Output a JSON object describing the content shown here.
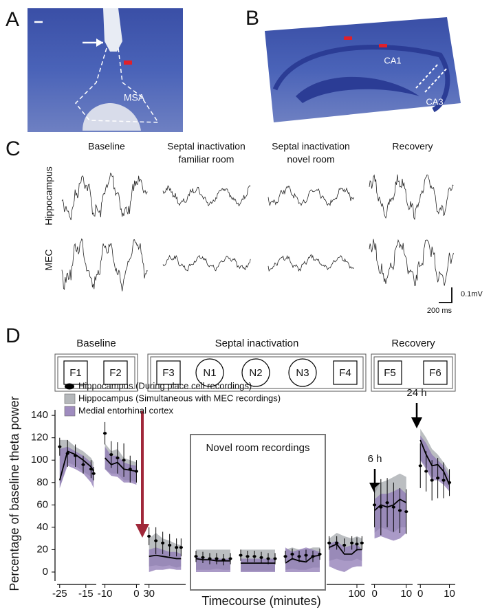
{
  "panel_labels": [
    "A",
    "B",
    "C",
    "D"
  ],
  "panel_a": {
    "labels": [
      "MSA"
    ]
  },
  "panel_b": {
    "labels": [
      "CA1",
      "CA3"
    ]
  },
  "panel_c": {
    "columns": [
      [
        "Baseline"
      ],
      [
        "Septal inactivation",
        "familiar room"
      ],
      [
        "Septal inactivation",
        "novel room"
      ],
      [
        "Recovery"
      ]
    ],
    "rows": [
      "Hippocampus",
      "MEC"
    ],
    "scale": {
      "voltage": "0.1mV",
      "time": "200 ms"
    }
  },
  "schematic": {
    "groups": [
      {
        "title": "Baseline",
        "items": [
          {
            "label": "F1",
            "shape": "square"
          },
          {
            "label": "F2",
            "shape": "square"
          }
        ]
      },
      {
        "title": "Septal inactivation",
        "items": [
          {
            "label": "F3",
            "shape": "square"
          },
          {
            "label": "N1",
            "shape": "circle"
          },
          {
            "label": "N2",
            "shape": "circle"
          },
          {
            "label": "N3",
            "shape": "circle"
          },
          {
            "label": "F4",
            "shape": "square"
          }
        ]
      },
      {
        "title": "Recovery",
        "items": [
          {
            "label": "F5",
            "shape": "square"
          },
          {
            "label": "F6",
            "shape": "square"
          }
        ]
      }
    ]
  },
  "chart_data": {
    "type": "line",
    "ylabel": "Percentage of baseline theta power",
    "xlabel": "Timecourse (minutes)",
    "ylim": [
      -8,
      145
    ],
    "yticks": [
      0,
      20,
      40,
      60,
      80,
      100,
      120,
      140
    ],
    "series": [
      {
        "name": "Hippocampus (During place cell recordings)",
        "color": "#000000"
      },
      {
        "name": "Hippocampus (Simultaneous with MEC recordings)",
        "color": "#b4b7ba"
      },
      {
        "name": "Medial entorhinal cortex",
        "color": "#8e78b4"
      }
    ],
    "annotations": [
      "6 h",
      "24 h",
      "Novel room recordings"
    ],
    "segments": [
      {
        "xlim": [
          -26,
          -11
        ],
        "xticks": [
          -25,
          -15
        ],
        "x": [
          -25,
          -22,
          -19,
          -16,
          -13,
          -12
        ],
        "dots": {
          "values": [
            112,
            106,
            104,
            96,
            92,
            88
          ],
          "err": [
            8,
            12,
            10,
            8,
            8,
            6
          ]
        },
        "hippo": {
          "values": [
            82,
            108,
            105,
            100,
            94,
            90
          ],
          "low": [
            75,
            98,
            95,
            90,
            85,
            80
          ],
          "high": [
            118,
            118,
            112,
            108,
            102,
            98
          ]
        },
        "mec": {
          "low": [
            75,
            95,
            92,
            88,
            80,
            75
          ],
          "high": [
            110,
            112,
            108,
            104,
            98,
            92
          ]
        }
      },
      {
        "xlim": [
          -11,
          1
        ],
        "xticks": [
          -10,
          0
        ],
        "x": [
          -10,
          -8,
          -6,
          -4,
          -2,
          0
        ],
        "dots": {
          "values": [
            124,
            105,
            102,
            100,
            92,
            90
          ],
          "err": [
            10,
            12,
            14,
            15,
            12,
            10
          ]
        },
        "hippo": {
          "values": [
            102,
            96,
            98,
            92,
            91,
            90
          ],
          "low": [
            92,
            88,
            88,
            82,
            82,
            80
          ],
          "high": [
            115,
            108,
            110,
            102,
            100,
            98
          ]
        },
        "mec": {
          "low": [
            92,
            86,
            85,
            80,
            80,
            78
          ],
          "high": [
            112,
            104,
            104,
            98,
            96,
            95
          ]
        }
      },
      {
        "xlim": [
          28,
          46
        ],
        "xticks": [
          30
        ],
        "x": [
          30,
          33,
          36,
          39,
          42,
          44
        ],
        "dots": {
          "values": [
            32,
            28,
            26,
            24,
            22,
            22
          ],
          "err": [
            8,
            12,
            10,
            10,
            8,
            8
          ]
        },
        "hippo": {
          "values": [
            14,
            15,
            14,
            13,
            12,
            12
          ],
          "low": [
            5,
            6,
            5,
            6,
            4,
            5
          ],
          "high": [
            30,
            35,
            30,
            28,
            25,
            24
          ]
        },
        "mec": {
          "low": [
            0,
            2,
            2,
            3,
            2,
            2
          ],
          "high": [
            20,
            22,
            20,
            18,
            18,
            16
          ]
        }
      },
      {
        "xlim": [
          -1,
          11
        ],
        "xticks": [],
        "x": [
          0,
          2,
          4,
          6,
          8,
          10
        ],
        "dots": {
          "values": [
            14,
            13,
            12,
            12,
            11,
            12
          ],
          "err": [
            5,
            5,
            5,
            5,
            5,
            5
          ]
        },
        "hippo": {
          "values": [
            12,
            11,
            11,
            10,
            10,
            10
          ],
          "low": [
            2,
            2,
            2,
            3,
            2,
            2
          ],
          "high": [
            20,
            20,
            20,
            20,
            20,
            20
          ]
        },
        "mec": {
          "low": [
            0,
            0,
            0,
            0,
            0,
            0
          ],
          "high": [
            14,
            12,
            12,
            12,
            12,
            12
          ]
        }
      },
      {
        "xlim": [
          -1,
          11
        ],
        "xticks": [],
        "x": [
          0,
          2,
          4,
          6,
          8,
          10
        ],
        "dots": {
          "values": [
            15,
            14,
            14,
            13,
            12,
            12
          ],
          "err": [
            5,
            5,
            5,
            5,
            5,
            5
          ]
        },
        "hippo": {
          "values": [
            8,
            8,
            8,
            8,
            8,
            8
          ],
          "low": [
            1,
            1,
            1,
            1,
            1,
            1
          ],
          "high": [
            20,
            20,
            20,
            20,
            20,
            20
          ]
        },
        "mec": {
          "low": [
            0,
            0,
            0,
            0,
            0,
            0
          ],
          "high": [
            12,
            12,
            12,
            12,
            12,
            12
          ]
        }
      },
      {
        "xlim": [
          -1,
          11
        ],
        "xticks": [],
        "x": [
          0,
          2,
          4,
          6,
          8,
          10
        ],
        "dots": {
          "values": [
            14,
            16,
            14,
            15,
            14,
            16
          ],
          "err": [
            5,
            5,
            5,
            5,
            5,
            5
          ]
        },
        "hippo": {
          "values": [
            8,
            12,
            10,
            9,
            14,
            15
          ],
          "low": [
            2,
            3,
            2,
            2,
            4,
            4
          ],
          "high": [
            20,
            22,
            20,
            20,
            22,
            22
          ]
        },
        "mec": {
          "low": [
            0,
            0,
            0,
            0,
            0,
            0
          ],
          "high": [
            22,
            18,
            20,
            22,
            20,
            18
          ]
        }
      },
      {
        "xlim": [
          88,
          103
        ],
        "xticks": [
          100
        ],
        "x": [
          89,
          92,
          95,
          98,
          100,
          102
        ],
        "dots": {
          "values": [
            26,
            26,
            24,
            26,
            25,
            26
          ],
          "err": [
            6,
            6,
            6,
            6,
            6,
            6
          ]
        },
        "hippo": {
          "values": [
            22,
            25,
            16,
            16,
            20,
            20
          ],
          "low": [
            10,
            12,
            10,
            10,
            12,
            10
          ],
          "high": [
            30,
            35,
            32,
            30,
            32,
            30
          ]
        },
        "mec": {
          "low": [
            5,
            2,
            0,
            4,
            5,
            5
          ],
          "high": [
            25,
            28,
            22,
            24,
            25,
            20
          ]
        }
      },
      {
        "xlim": [
          -1,
          12
        ],
        "xticks": [
          0,
          10
        ],
        "x": [
          0,
          2,
          4,
          6,
          8,
          10
        ],
        "dots": {
          "values": [
            60,
            58,
            62,
            58,
            55,
            54
          ],
          "err": [
            20,
            25,
            22,
            22,
            20,
            20
          ]
        },
        "hippo": {
          "values": [
            55,
            60,
            58,
            60,
            65,
            62
          ],
          "low": [
            35,
            40,
            38,
            35,
            40,
            40
          ],
          "high": [
            75,
            80,
            82,
            85,
            88,
            85
          ]
        },
        "mec": {
          "low": [
            30,
            32,
            30,
            28,
            30,
            35
          ],
          "high": [
            65,
            70,
            70,
            72,
            75,
            70
          ]
        }
      },
      {
        "xlim": [
          -1,
          12
        ],
        "xticks": [
          0,
          10
        ],
        "x": [
          0,
          2,
          4,
          6,
          8,
          10
        ],
        "dots": {
          "values": [
            95,
            90,
            82,
            84,
            82,
            80
          ],
          "err": [
            20,
            18,
            18,
            18,
            16,
            12
          ]
        },
        "hippo": {
          "values": [
            118,
            105,
            95,
            96,
            90,
            78
          ],
          "low": [
            100,
            95,
            85,
            85,
            80,
            75
          ],
          "high": [
            128,
            120,
            110,
            105,
            98,
            90
          ]
        },
        "mec": {
          "low": [
            100,
            92,
            82,
            82,
            78,
            72
          ],
          "high": [
            122,
            115,
            105,
            100,
            95,
            85
          ]
        }
      }
    ]
  }
}
